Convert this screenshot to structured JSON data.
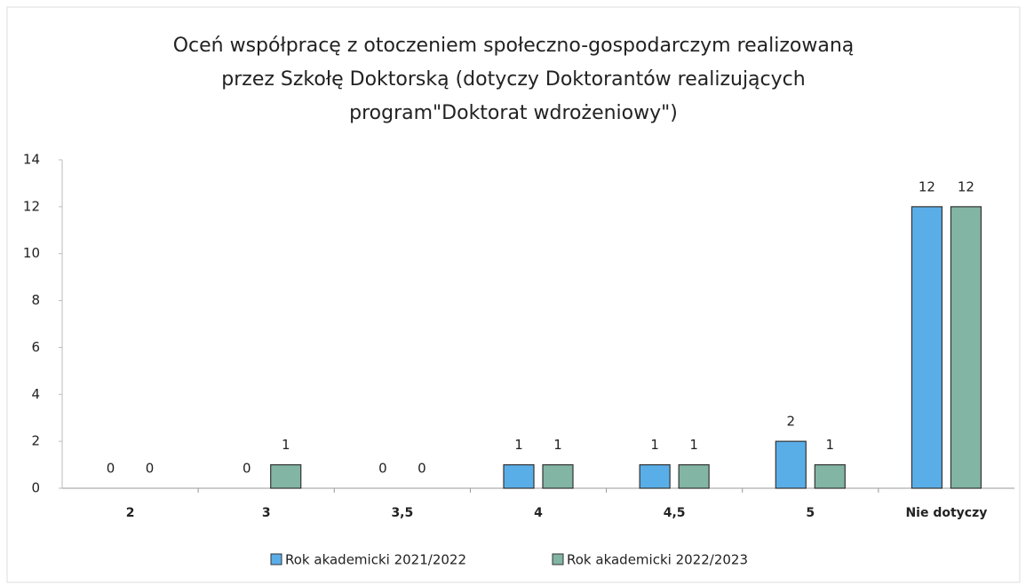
{
  "chart_data": {
    "type": "bar",
    "title": "Oceń współpracę z otoczeniem społeczno-gospodarczym realizowaną\nprzez Szkołę Doktorską (dotyczy Doktorantów realizujących\nprogram\"Doktorat wdrożeniowy\")",
    "categories": [
      "2",
      "3",
      "3,5",
      "4",
      "4,5",
      "5",
      "Nie dotyczy"
    ],
    "series": [
      {
        "name": "Rok akademicki 2021/2022",
        "color": "#5aaee8",
        "values": [
          0,
          0,
          0,
          1,
          1,
          2,
          12
        ]
      },
      {
        "name": "Rok akademicki 2022/2023",
        "color": "#82b5a3",
        "values": [
          0,
          1,
          0,
          1,
          1,
          1,
          12
        ]
      }
    ],
    "ylim": [
      0,
      14
    ],
    "yticks": [
      0,
      2,
      4,
      6,
      8,
      10,
      12,
      14
    ],
    "grid": false,
    "legend": "bottom"
  }
}
